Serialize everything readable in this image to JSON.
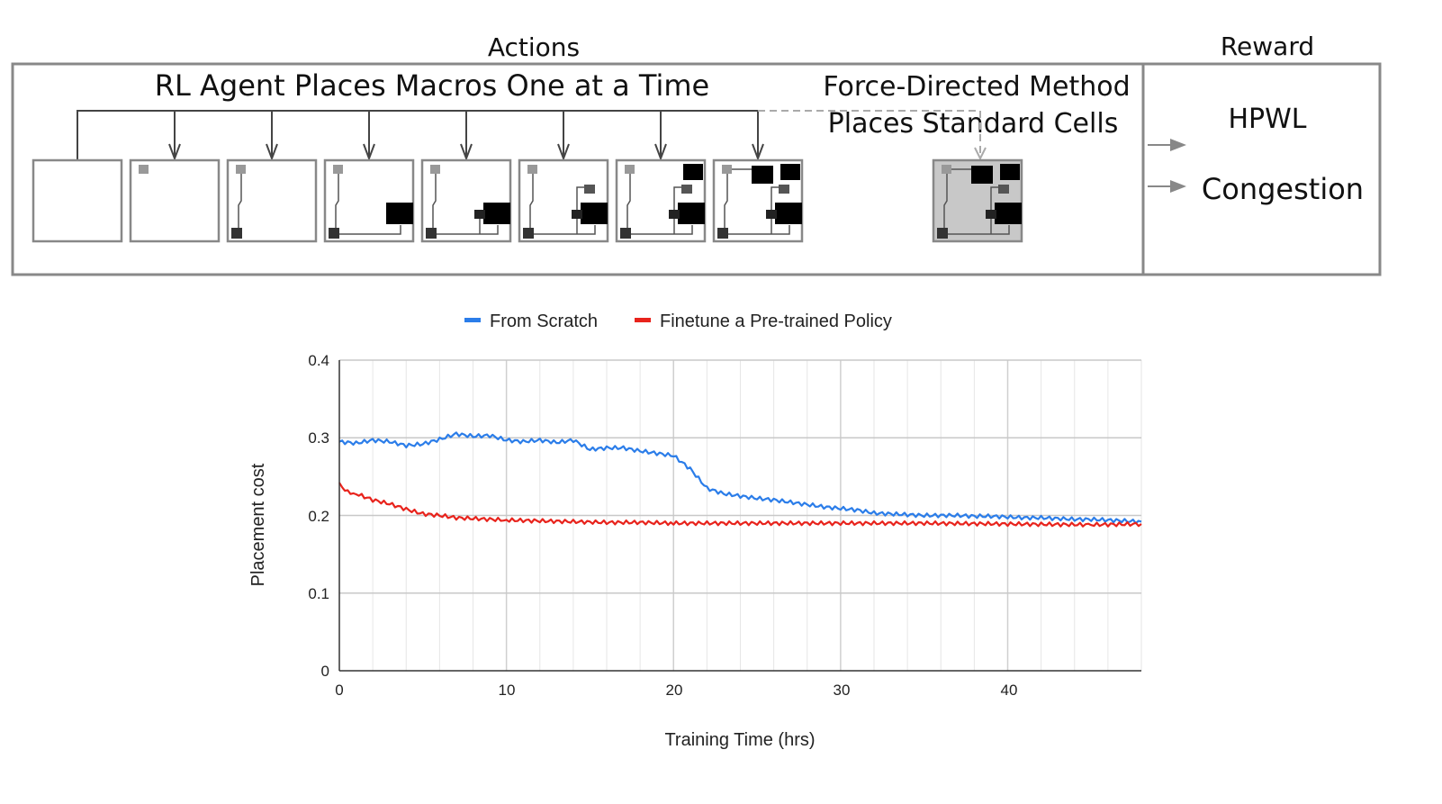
{
  "diagram": {
    "actions_title": "Actions",
    "reward_title": "Reward",
    "rl_agent_label": "RL Agent Places Macros One at a Time",
    "force_directed_line1": "Force-Directed Method",
    "force_directed_line2": "Places Standard Cells",
    "reward_items": [
      "HPWL",
      "Congestion"
    ],
    "placement_steps": 8,
    "colors": {
      "frame": "#888888",
      "macro": "#000000",
      "pin": "#999999",
      "final_fill": "#c8c8c8"
    }
  },
  "chart_data": {
    "type": "line",
    "title": "",
    "xlabel": "Training Time (hrs)",
    "ylabel": "Placement cost",
    "xlim": [
      0,
      48
    ],
    "ylim": [
      0,
      0.4
    ],
    "xticks": [
      "0",
      "10",
      "20",
      "30",
      "40"
    ],
    "yticks": [
      "0",
      "0.1",
      "0.2",
      "0.3",
      "0.4"
    ],
    "grid": true,
    "legend_position": "top",
    "series": [
      {
        "name": "From Scratch",
        "color": "#2b7de9",
        "x": [
          0,
          1,
          2,
          3,
          4,
          5,
          6,
          7,
          8,
          9,
          10,
          11,
          12,
          13,
          14,
          15,
          16,
          17,
          18,
          19,
          20,
          21,
          22,
          23,
          24,
          25,
          26,
          27,
          28,
          29,
          30,
          31,
          32,
          33,
          34,
          35,
          36,
          37,
          38,
          39,
          40,
          41,
          42,
          43,
          44,
          45,
          46,
          47,
          48
        ],
        "y": [
          0.295,
          0.293,
          0.297,
          0.295,
          0.29,
          0.292,
          0.298,
          0.305,
          0.302,
          0.303,
          0.297,
          0.295,
          0.297,
          0.294,
          0.297,
          0.285,
          0.287,
          0.287,
          0.283,
          0.28,
          0.277,
          0.26,
          0.235,
          0.228,
          0.225,
          0.222,
          0.22,
          0.217,
          0.214,
          0.211,
          0.209,
          0.207,
          0.203,
          0.202,
          0.201,
          0.2,
          0.2,
          0.2,
          0.199,
          0.199,
          0.198,
          0.197,
          0.197,
          0.196,
          0.195,
          0.195,
          0.194,
          0.193,
          0.192
        ]
      },
      {
        "name": "Finetune a Pre-trained Policy",
        "color": "#e8231c",
        "x": [
          0,
          0.5,
          1,
          2,
          3,
          4,
          5,
          6,
          7,
          8,
          9,
          10,
          12,
          14,
          16,
          18,
          20,
          25,
          30,
          35,
          40,
          45,
          48
        ],
        "y": [
          0.24,
          0.23,
          0.228,
          0.22,
          0.215,
          0.208,
          0.202,
          0.2,
          0.197,
          0.196,
          0.195,
          0.194,
          0.193,
          0.192,
          0.191,
          0.191,
          0.19,
          0.19,
          0.19,
          0.19,
          0.189,
          0.188,
          0.189
        ]
      }
    ]
  }
}
